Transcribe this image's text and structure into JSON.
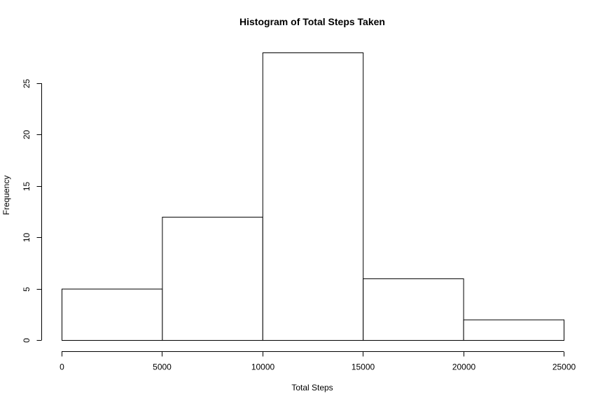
{
  "chart_data": {
    "type": "bar",
    "title": "Histogram of Total Steps Taken",
    "xlabel": "Total Steps",
    "ylabel": "Frequency",
    "bin_edges": [
      0,
      5000,
      10000,
      15000,
      20000,
      25000
    ],
    "values": [
      5,
      12,
      28,
      6,
      2
    ],
    "xlim": [
      0,
      25000
    ],
    "ylim": [
      0,
      28
    ],
    "x_ticks": [
      0,
      5000,
      10000,
      15000,
      20000,
      25000
    ],
    "x_tick_labels": [
      "0",
      "5000",
      "10000",
      "15000",
      "20000",
      "25000"
    ],
    "y_ticks": [
      0,
      5,
      10,
      15,
      20,
      25
    ],
    "y_tick_labels": [
      "0",
      "5",
      "10",
      "15",
      "20",
      "25"
    ],
    "bar_fill": "#ffffff",
    "bar_stroke": "#000000",
    "grid": false,
    "legend": "none"
  }
}
